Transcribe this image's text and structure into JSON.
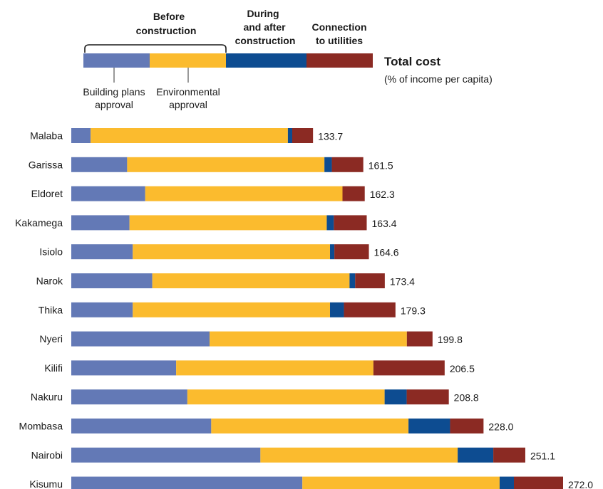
{
  "colors": {
    "building_plans": "#6379b6",
    "environmental": "#fbbb2e",
    "during_after": "#0d4c91",
    "utilities": "#8b2a23"
  },
  "legend": {
    "before_line1": "Before",
    "before_line2": "construction",
    "during_line1": "During",
    "during_line2": "and after",
    "during_line3": "construction",
    "conn_line1": "Connection",
    "conn_line2": "to utilities",
    "building_line1": "Building plans",
    "building_line2": "approval",
    "env_line1": "Environmental",
    "env_line2": "approval",
    "total_title": "Total cost",
    "total_sub": "(% of income per capita)"
  },
  "chart_data": {
    "type": "bar",
    "orientation": "horizontal",
    "stacked": true,
    "categories": [
      "Malaba",
      "Garissa",
      "Eldoret",
      "Kakamega",
      "Isiolo",
      "Narok",
      "Thika",
      "Nyeri",
      "Kilifi",
      "Nakuru",
      "Mombasa",
      "Nairobi",
      "Kisumu"
    ],
    "series": [
      {
        "name": "Building plans approval",
        "values": [
          10.7,
          30.9,
          40.9,
          32.2,
          34.0,
          44.8,
          34.0,
          76.5,
          58.0,
          64.2,
          77.4,
          104.6,
          127.8
        ]
      },
      {
        "name": "Environmental approval",
        "values": [
          109.1,
          109.1,
          109.1,
          109.1,
          109.1,
          109.1,
          109.1,
          109.1,
          109.1,
          109.1,
          109.1,
          109.1,
          109.1
        ]
      },
      {
        "name": "During and after construction",
        "values": [
          2.4,
          4.1,
          0.0,
          3.9,
          2.4,
          3.1,
          7.7,
          0.0,
          0.0,
          12.2,
          23.0,
          19.7,
          7.9
        ]
      },
      {
        "name": "Connection to utilities",
        "values": [
          11.5,
          17.4,
          12.3,
          18.2,
          19.1,
          16.4,
          28.5,
          14.2,
          39.4,
          23.3,
          18.5,
          17.7,
          27.2
        ]
      }
    ],
    "totals": [
      "133.7",
      "161.5",
      "162.3",
      "163.4",
      "164.6",
      "173.4",
      "179.3",
      "199.8",
      "206.5",
      "208.8",
      "228.0",
      "251.1",
      "272.0"
    ],
    "xlabel": "",
    "ylabel": "",
    "xlim": [
      0,
      272.0
    ],
    "grid": false
  }
}
